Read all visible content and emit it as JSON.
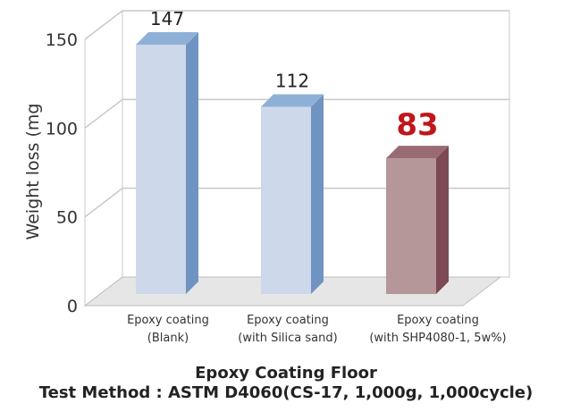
{
  "chart_data": {
    "type": "bar",
    "title": "Epoxy Coating Floor",
    "subtitle": "Test Method : ASTM D4060(CS-17, 1,000g, 1,000cycle)",
    "ylabel": "Weight loss (mg",
    "ylim": [
      0,
      150
    ],
    "yticks": [
      "0",
      "50",
      "100",
      "150"
    ],
    "categories": [
      [
        "Epoxy coating",
        "(Blank)"
      ],
      [
        "Epoxy coating",
        "(with Silica sand)"
      ],
      [
        "Epoxy coating",
        "(with SHP4080-1, 5w%)"
      ]
    ],
    "values": [
      147,
      112,
      83
    ],
    "value_labels": [
      "147",
      "112",
      "83"
    ],
    "highlight_index": 2,
    "grid": true,
    "three_d": true
  },
  "colors": {
    "bar_front": "#cdd9ea",
    "bar_side": "#6f94c2",
    "bar_top": "#8fb0d6",
    "highlight_front": "#b69799",
    "highlight_side": "#7d4a53",
    "highlight_top": "#9a6a72",
    "highlight_text": "#c0171c",
    "grid": "#c8c8c8",
    "floor": "#e6e6e6"
  }
}
